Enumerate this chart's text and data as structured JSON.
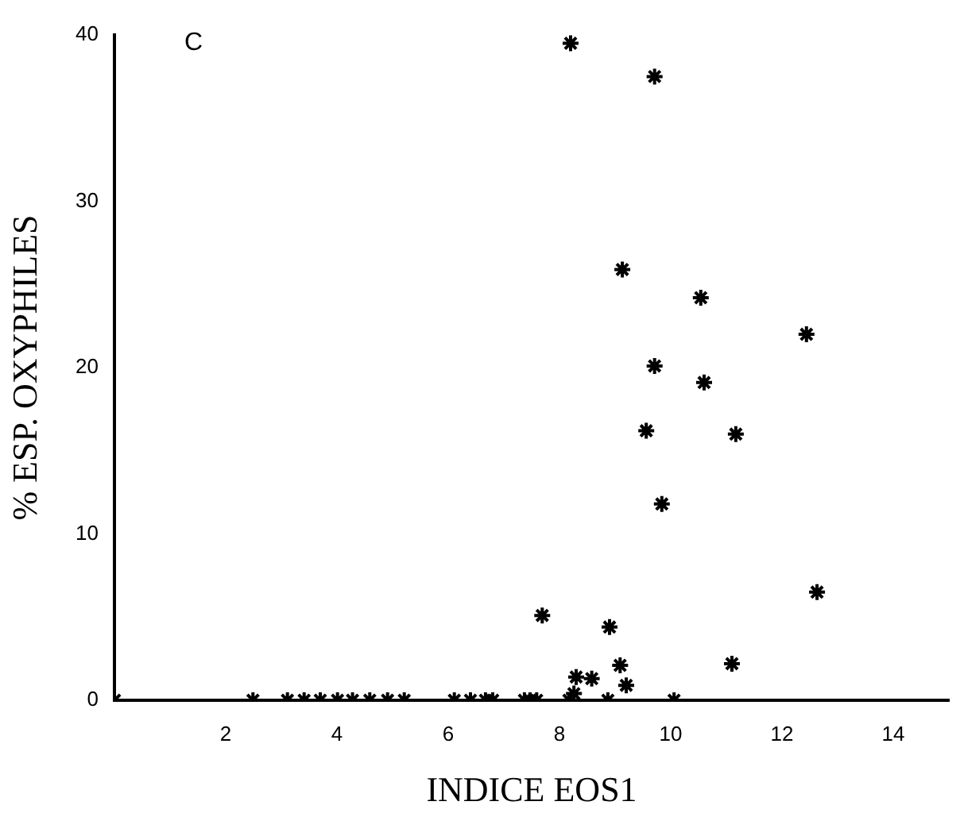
{
  "chart_data": {
    "type": "scatter",
    "xlabel": "INDICE EOS1",
    "ylabel": "% ESP. OXYPHILES",
    "annotations": [
      "C"
    ],
    "x": [
      8.2,
      9.71,
      9.13,
      10.54,
      12.44,
      9.71,
      10.6,
      9.56,
      11.17,
      9.84,
      12.63,
      7.69,
      8.9,
      9.09,
      11.1,
      8.3,
      8.58,
      9.2,
      8.26,
      0,
      2.49,
      3.11,
      3.41,
      3.7,
      4.01,
      4.28,
      4.59,
      4.91,
      5.21,
      6.11,
      6.4,
      6.67,
      6.8,
      7.37,
      7.47,
      7.59,
      8.17,
      8.87,
      10.06
    ],
    "values": [
      39.5,
      37.5,
      25.9,
      24.2,
      22.0,
      20.1,
      19.1,
      16.2,
      16.0,
      11.8,
      6.5,
      5.1,
      4.4,
      2.1,
      2.2,
      1.4,
      1.3,
      0.9,
      0.4,
      0,
      0,
      0,
      0,
      0,
      0,
      0,
      0,
      0,
      0,
      0,
      0,
      0,
      0,
      0,
      0,
      0,
      0,
      0,
      0
    ],
    "color": "#000000",
    "marker": "cross",
    "xlim": [
      0,
      15
    ],
    "xticks": [
      2,
      4,
      6,
      8,
      10,
      12,
      14
    ],
    "ylim": [
      0,
      40
    ],
    "yticks": [
      0,
      10,
      20,
      30,
      40
    ],
    "grid": false,
    "legend": false
  }
}
